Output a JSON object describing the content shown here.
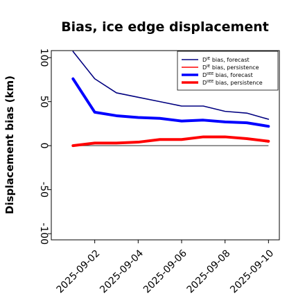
{
  "chart_data": {
    "type": "line",
    "title": "Bias, ice edge displacement",
    "xlabel": "",
    "ylabel": "Displacement bias (km)",
    "x": [
      "2025-09-01",
      "2025-09-02",
      "2025-09-03",
      "2025-09-04",
      "2025-09-05",
      "2025-09-06",
      "2025-09-07",
      "2025-09-08",
      "2025-09-09",
      "2025-09-10"
    ],
    "xticks": [
      "2025-09-02",
      "2025-09-04",
      "2025-09-06",
      "2025-09-08",
      "2025-09-10"
    ],
    "highlighted_xtick": "2025-09-02",
    "highlight_color": "#228B22",
    "yticks": [
      100,
      50,
      0,
      -50,
      -100
    ],
    "ylim": [
      -107,
      108
    ],
    "xlim": [
      "2025-08-31T00:00",
      "2025-09-10T12:00"
    ],
    "zero_line_color": "#555555",
    "grid": false,
    "legend_position": "upper right",
    "series": [
      {
        "name_base": "D",
        "name_sup": "IE",
        "name_suffix": " bias, forecast",
        "color": "#000080",
        "width": "thin",
        "values": [
          107,
          76,
          60,
          55,
          50,
          45,
          45,
          39,
          37,
          30
        ]
      },
      {
        "name_base": "D",
        "name_sup": "IE",
        "name_suffix": " bias, persistence",
        "color": "#ff0000",
        "width": "thin",
        "values": [
          0,
          3,
          3,
          4,
          7,
          7,
          10,
          10,
          8,
          4
        ]
      },
      {
        "name_base": "D",
        "name_sup": "IIEE",
        "name_suffix": " bias, forecast",
        "color": "#0000ff",
        "width": "thick",
        "values": [
          76,
          38,
          34,
          32,
          31,
          28,
          29,
          27,
          26,
          22
        ]
      },
      {
        "name_base": "D",
        "name_sup": "IIEE",
        "name_suffix": " bias, persistence",
        "color": "#ff0000",
        "width": "thick",
        "values": [
          0,
          3,
          3,
          4,
          7,
          7,
          10,
          10,
          8,
          5
        ]
      }
    ]
  }
}
